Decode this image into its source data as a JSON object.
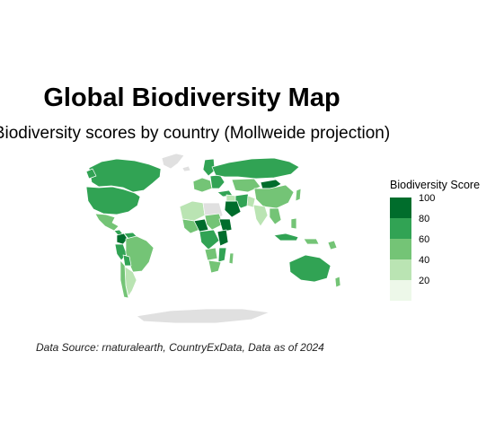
{
  "title": "Global Biodiversity Map",
  "subtitle": "Biodiversity scores by country (Mollweide projection)",
  "caption": "Data Source: rnaturalearth, CountryExData, Data as of 2024",
  "legend": {
    "title": "Biodiversity Score",
    "breaks": [
      "100",
      "80",
      "60",
      "40",
      "20"
    ],
    "colors": [
      "#006d2c",
      "#31a354",
      "#74c476",
      "#bae4b3",
      "#edf8e9"
    ]
  },
  "map_colors": {
    "no_data": "#e0e0e0",
    "border": "#ffffff"
  }
}
